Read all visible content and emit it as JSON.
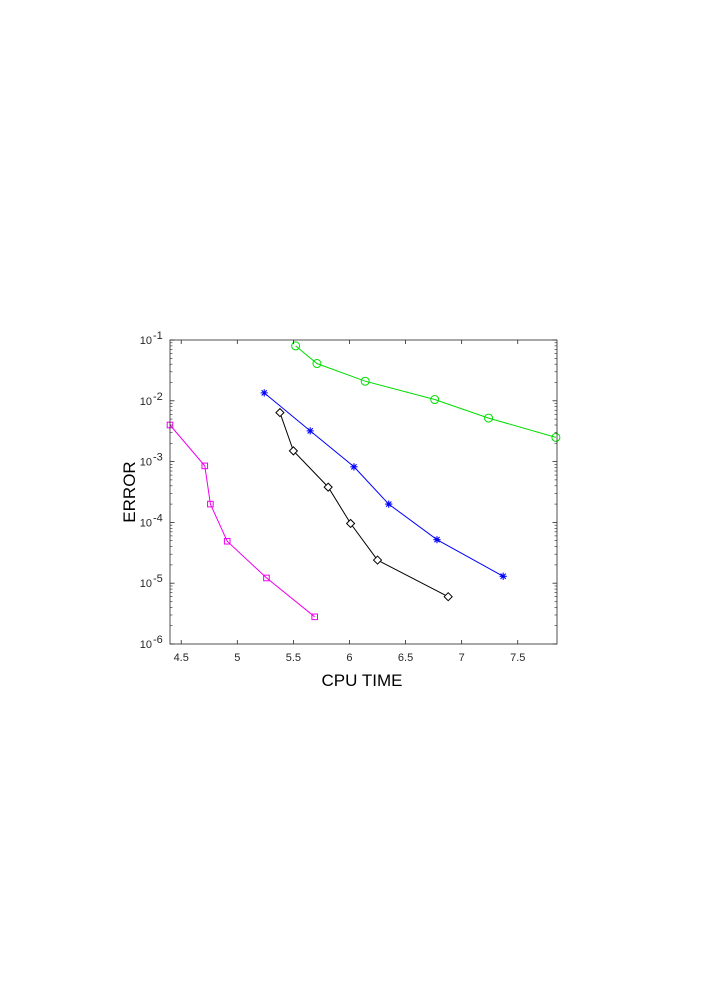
{
  "chart_data": {
    "type": "line",
    "title": "",
    "xlabel": "CPU TIME",
    "ylabel": "ERROR",
    "xlim": [
      4.4,
      7.85
    ],
    "ylim": [
      1e-06,
      0.1
    ],
    "yscale": "log",
    "grid": false,
    "box": true,
    "xticks": [
      4.5,
      5,
      5.5,
      6,
      6.5,
      7,
      7.5
    ],
    "xtick_labels": [
      "4.5",
      "5",
      "5.5",
      "6",
      "6.5",
      "7",
      "7.5"
    ],
    "yticks": [
      {
        "value": 1e-06,
        "base": "10",
        "exp": "-6"
      },
      {
        "value": 1e-05,
        "base": "10",
        "exp": "-5"
      },
      {
        "value": 0.0001,
        "base": "10",
        "exp": "-4"
      },
      {
        "value": 0.001,
        "base": "10",
        "exp": "-3"
      },
      {
        "value": 0.01,
        "base": "10",
        "exp": "-2"
      },
      {
        "value": 0.1,
        "base": "10",
        "exp": "-1"
      }
    ],
    "series": [
      {
        "color": "#00dd00",
        "marker": "circle",
        "x": [
          5.52,
          5.71,
          6.14,
          6.76,
          7.24,
          7.84
        ],
        "y": [
          0.08,
          0.041,
          0.021,
          0.0105,
          0.0052,
          0.0025
        ]
      },
      {
        "color": "#0000ff",
        "marker": "asterisk",
        "x": [
          5.24,
          5.65,
          6.04,
          6.35,
          6.78,
          7.37
        ],
        "y": [
          0.0135,
          0.0032,
          0.00082,
          0.0002,
          5.2e-05,
          1.3e-05
        ]
      },
      {
        "color": "#000000",
        "marker": "diamond",
        "x": [
          5.38,
          5.5,
          5.81,
          6.01,
          6.25,
          6.88
        ],
        "y": [
          0.0064,
          0.0015,
          0.00038,
          9.6e-05,
          2.4e-05,
          6e-06
        ]
      },
      {
        "color": "#ee00ee",
        "marker": "square",
        "x": [
          4.4,
          4.71,
          4.76,
          4.91,
          5.26,
          5.69
        ],
        "y": [
          0.004,
          0.00085,
          0.0002,
          4.9e-05,
          1.22e-05,
          2.8e-06
        ]
      }
    ]
  }
}
